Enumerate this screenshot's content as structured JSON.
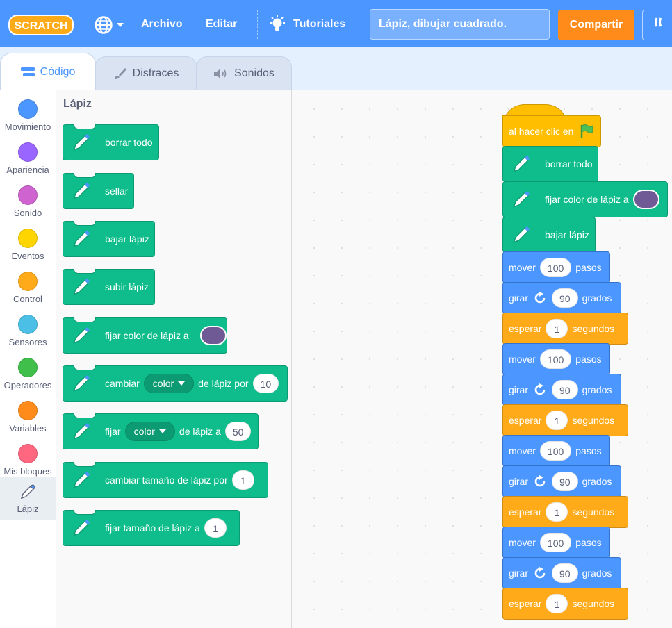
{
  "menubar": {
    "logo_text": "SCRATCH",
    "file_label": "Archivo",
    "edit_label": "Editar",
    "tutorials_label": "Tutoriales",
    "project_title": "Lápiz, dibujar cuadrado.",
    "share_label": "Compartir",
    "remix_label": "⸨"
  },
  "tabs": [
    {
      "label": "Código",
      "icon": "code-icon",
      "active": true
    },
    {
      "label": "Disfraces",
      "icon": "brush-icon",
      "active": false
    },
    {
      "label": "Sonidos",
      "icon": "speaker-icon",
      "active": false
    }
  ],
  "categories": [
    {
      "label": "Movimiento",
      "color": "#4c97ff"
    },
    {
      "label": "Apariencia",
      "color": "#9966ff"
    },
    {
      "label": "Sonido",
      "color": "#cf63cf"
    },
    {
      "label": "Eventos",
      "color": "#ffd500"
    },
    {
      "label": "Control",
      "color": "#ffab19"
    },
    {
      "label": "Sensores",
      "color": "#4cbfe6"
    },
    {
      "label": "Operadores",
      "color": "#40bf4a"
    },
    {
      "label": "Variables",
      "color": "#ff8c1a"
    },
    {
      "label": "Mis bloques",
      "color": "#ff6680"
    },
    {
      "label": "Lápiz",
      "icon": "pen-icon",
      "selected": true
    }
  ],
  "palette": {
    "heading": "Lápiz",
    "blocks": {
      "clear": "borrar todo",
      "stamp": "sellar",
      "pen_down": "bajar lápiz",
      "pen_up": "subir lápiz",
      "set_color": "fijar color de lápiz a",
      "change_param_a": "cambiar",
      "change_param_menu": "color",
      "change_param_b": "de lápiz por",
      "change_param_value": "10",
      "set_param_a": "fijar",
      "set_param_menu": "color",
      "set_param_b": "de lápiz a",
      "set_param_value": "50",
      "change_size": "cambiar tamaño de lápiz por",
      "change_size_value": "1",
      "set_size": "fijar tamaño de lápiz a",
      "set_size_value": "1"
    }
  },
  "script": {
    "hat": "al hacer clic en",
    "clear": "borrar todo",
    "set_color": "fijar color de lápiz a",
    "pen_down": "bajar lápiz",
    "move_label": "mover",
    "move_value": "100",
    "move_unit": "pasos",
    "turn_label": "girar",
    "turn_value": "90",
    "turn_unit": "grados",
    "wait_label": "esperar",
    "wait_value": "1",
    "wait_unit": "segundos"
  },
  "colors": {
    "pen_color": "#6f5a96",
    "motion": "#4c97ff",
    "control": "#ffab19",
    "events": "#ffbf00",
    "pen": "#0fbd8c"
  }
}
